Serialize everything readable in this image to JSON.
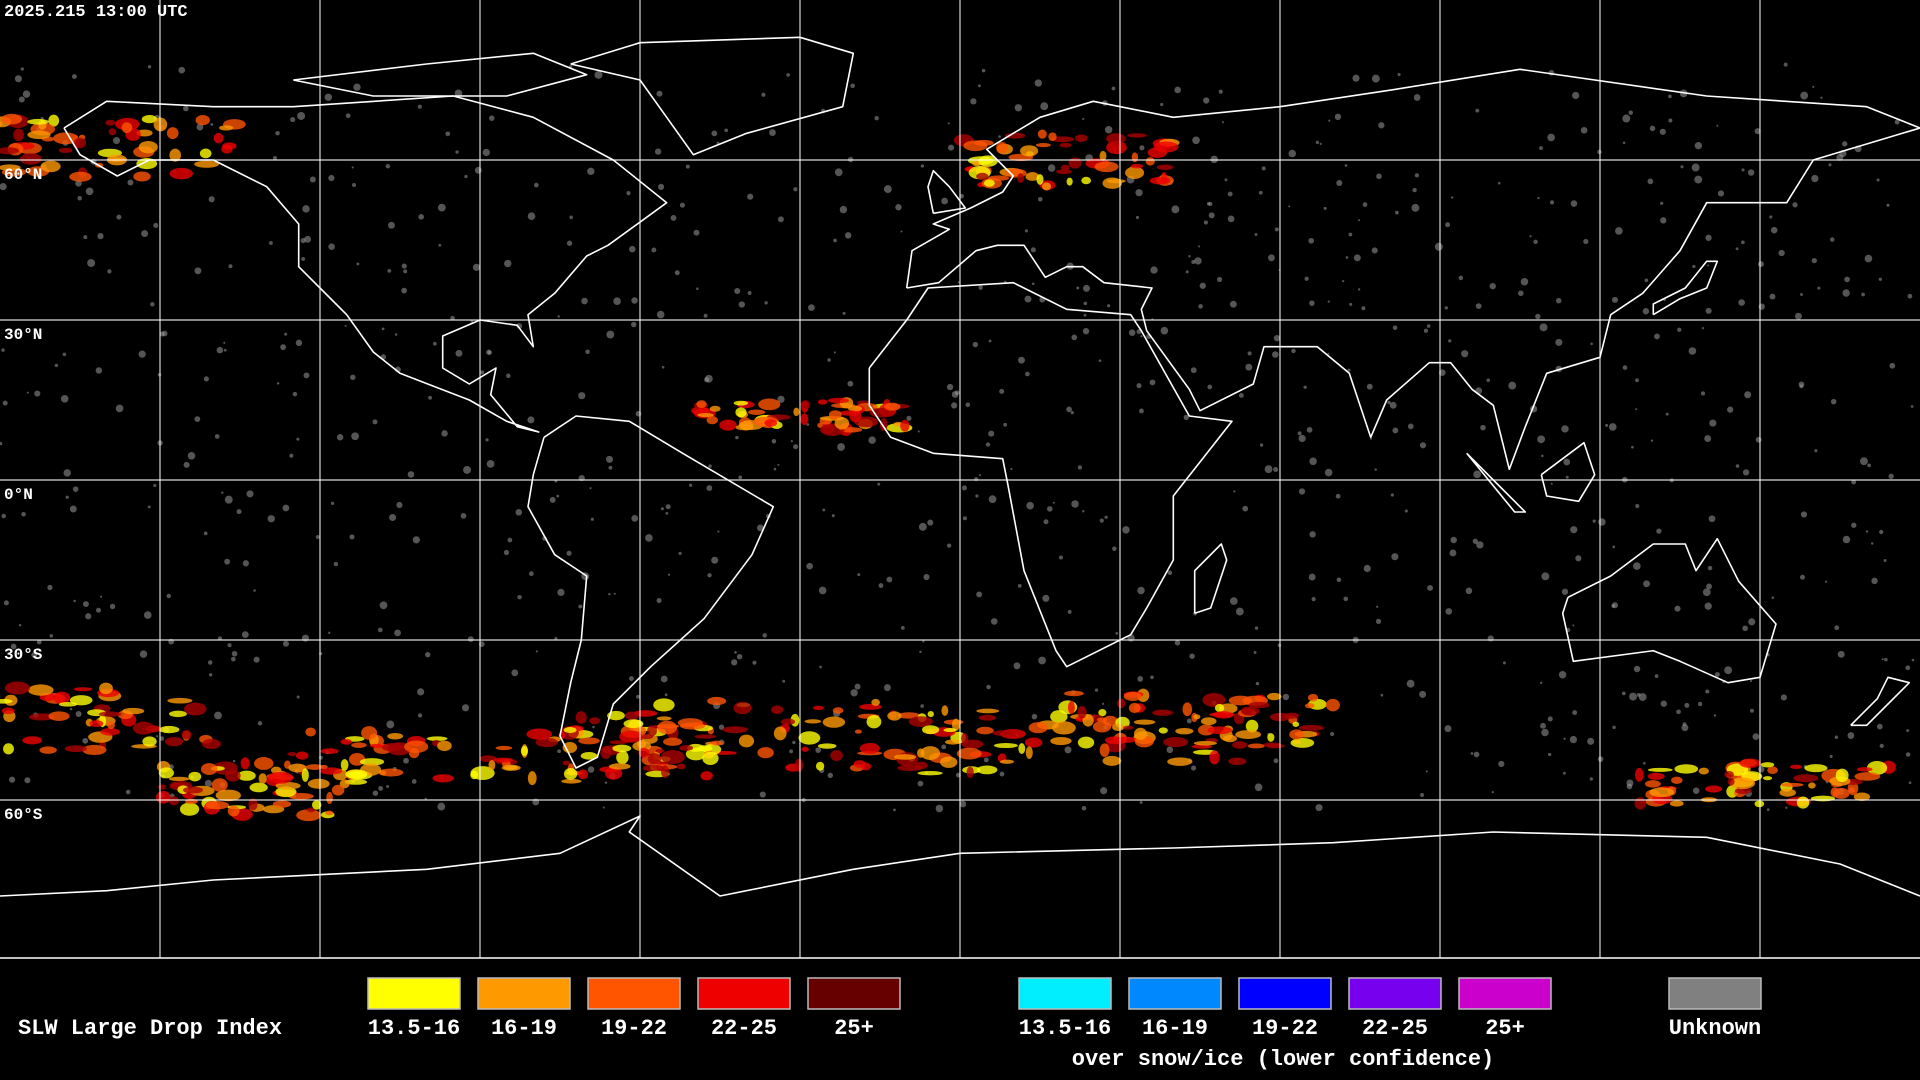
{
  "timestamp": "2025.215 13:00 UTC",
  "latitude_labels": [
    "60°N",
    "30°N",
    "0°N",
    "30°S",
    "60°S"
  ],
  "legend": {
    "title": "SLW Large Drop Index",
    "items": [
      {
        "label": "13.5-16",
        "color": "#ffff00"
      },
      {
        "label": "16-19",
        "color": "#ff9900"
      },
      {
        "label": "19-22",
        "color": "#ff5500"
      },
      {
        "label": "22-25",
        "color": "#ee0000"
      },
      {
        "label": "25+",
        "color": "#660000"
      }
    ],
    "snow_items": [
      {
        "label": "13.5-16",
        "color": "#00eeff"
      },
      {
        "label": "16-19",
        "color": "#0088ff"
      },
      {
        "label": "19-22",
        "color": "#0000ff"
      },
      {
        "label": "22-25",
        "color": "#7700ee"
      },
      {
        "label": "25+",
        "color": "#cc00cc"
      }
    ],
    "snow_caption": "over snow/ice (lower confidence)",
    "unknown": {
      "label": "Unknown",
      "color": "#808080"
    }
  }
}
